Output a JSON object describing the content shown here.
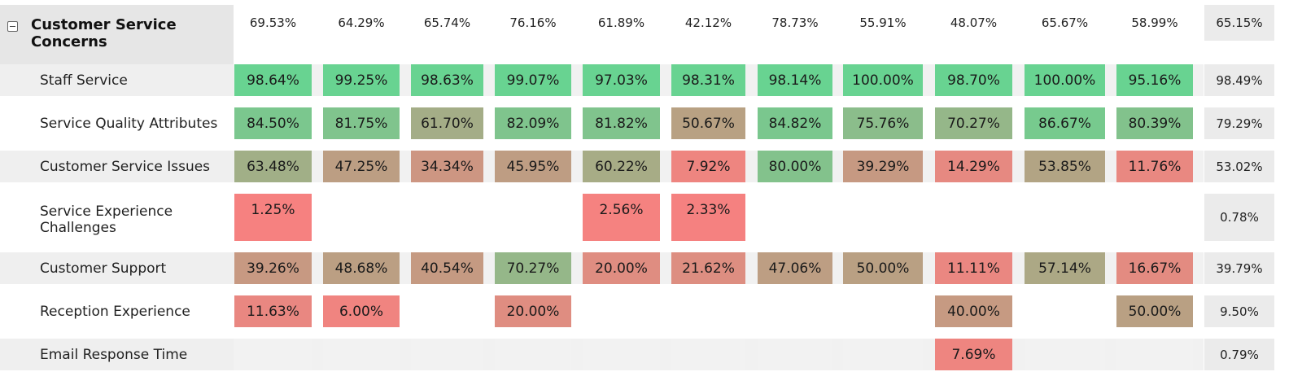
{
  "group": {
    "title": "Customer Service Concerns",
    "header_values": [
      "69.53%",
      "64.29%",
      "65.74%",
      "76.16%",
      "61.89%",
      "42.12%",
      "78.73%",
      "55.91%",
      "48.07%",
      "65.67%",
      "58.99%"
    ],
    "total": "65.15%"
  },
  "rows": [
    {
      "label": "Staff Service",
      "values": [
        "98.64%",
        "99.25%",
        "98.63%",
        "99.07%",
        "97.03%",
        "98.31%",
        "98.14%",
        "100.00%",
        "98.70%",
        "100.00%",
        "95.16%"
      ],
      "total": "98.49%"
    },
    {
      "label": "Service Quality Attributes",
      "values": [
        "84.50%",
        "81.75%",
        "61.70%",
        "82.09%",
        "81.82%",
        "50.67%",
        "84.82%",
        "75.76%",
        "70.27%",
        "86.67%",
        "80.39%"
      ],
      "total": "79.29%"
    },
    {
      "label": "Customer Service Issues",
      "values": [
        "63.48%",
        "47.25%",
        "34.34%",
        "45.95%",
        "60.22%",
        "7.92%",
        "80.00%",
        "39.29%",
        "14.29%",
        "53.85%",
        "11.76%"
      ],
      "total": "53.02%"
    },
    {
      "label": "Service Experience Challenges",
      "values": [
        "1.25%",
        "",
        "",
        "",
        "2.56%",
        "2.33%",
        "",
        "",
        "",
        "",
        ""
      ],
      "total": "0.78%"
    },
    {
      "label": "Customer Support",
      "values": [
        "39.26%",
        "48.68%",
        "40.54%",
        "70.27%",
        "20.00%",
        "21.62%",
        "47.06%",
        "50.00%",
        "11.11%",
        "57.14%",
        "16.67%"
      ],
      "total": "39.79%"
    },
    {
      "label": "Reception Experience",
      "values": [
        "11.63%",
        "6.00%",
        "",
        "20.00%",
        "",
        "",
        "",
        "",
        "40.00%",
        "",
        "50.00%"
      ],
      "total": "9.50%"
    },
    {
      "label": "Email Response Time",
      "values": [
        "",
        "",
        "",
        "",
        "",
        "",
        "",
        "",
        "7.69%",
        "",
        ""
      ],
      "total": "0.79%"
    }
  ],
  "colors": {
    "high": "#68d391",
    "low": "#f88080",
    "label_shade": "#efefef",
    "total_shade": "#ebebeb"
  }
}
